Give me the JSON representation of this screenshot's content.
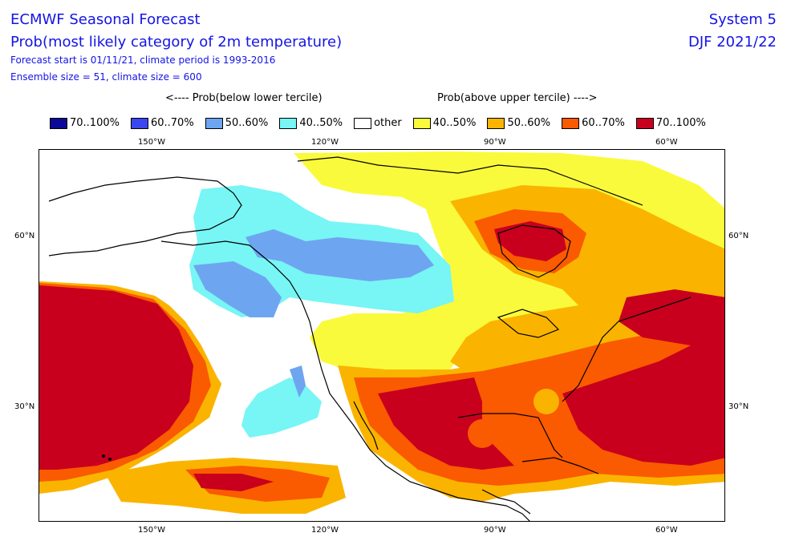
{
  "header": {
    "title": "ECMWF Seasonal Forecast",
    "subtitle": "Prob(most likely category of 2m temperature)",
    "forecast_info": "Forecast start is 01/11/21, climate period is 1993-2016",
    "ensemble_info": "Ensemble size = 51, climate size = 600",
    "system": "System 5",
    "season": "DJF 2021/22"
  },
  "legend": {
    "below_heading": "<---- Prob(below lower tercile)",
    "above_heading": "Prob(above upper tercile) ---->",
    "items": [
      {
        "label": "70..100%",
        "color": "#0a0a96"
      },
      {
        "label": "60..70%",
        "color": "#3c46f0"
      },
      {
        "label": "50..60%",
        "color": "#6ea5f0"
      },
      {
        "label": "40..50%",
        "color": "#78f5f5"
      },
      {
        "label": "other",
        "color": "#ffffff"
      },
      {
        "label": "40..50%",
        "color": "#fafa3c"
      },
      {
        "label": "50..60%",
        "color": "#fab400"
      },
      {
        "label": "60..70%",
        "color": "#fa5a00"
      },
      {
        "label": "70..100%",
        "color": "#c8001e"
      }
    ]
  },
  "axes": {
    "lon_labels": [
      "150°W",
      "120°W",
      "90°W",
      "60°W"
    ],
    "lat_labels": [
      "60°N",
      "30°N"
    ]
  }
}
